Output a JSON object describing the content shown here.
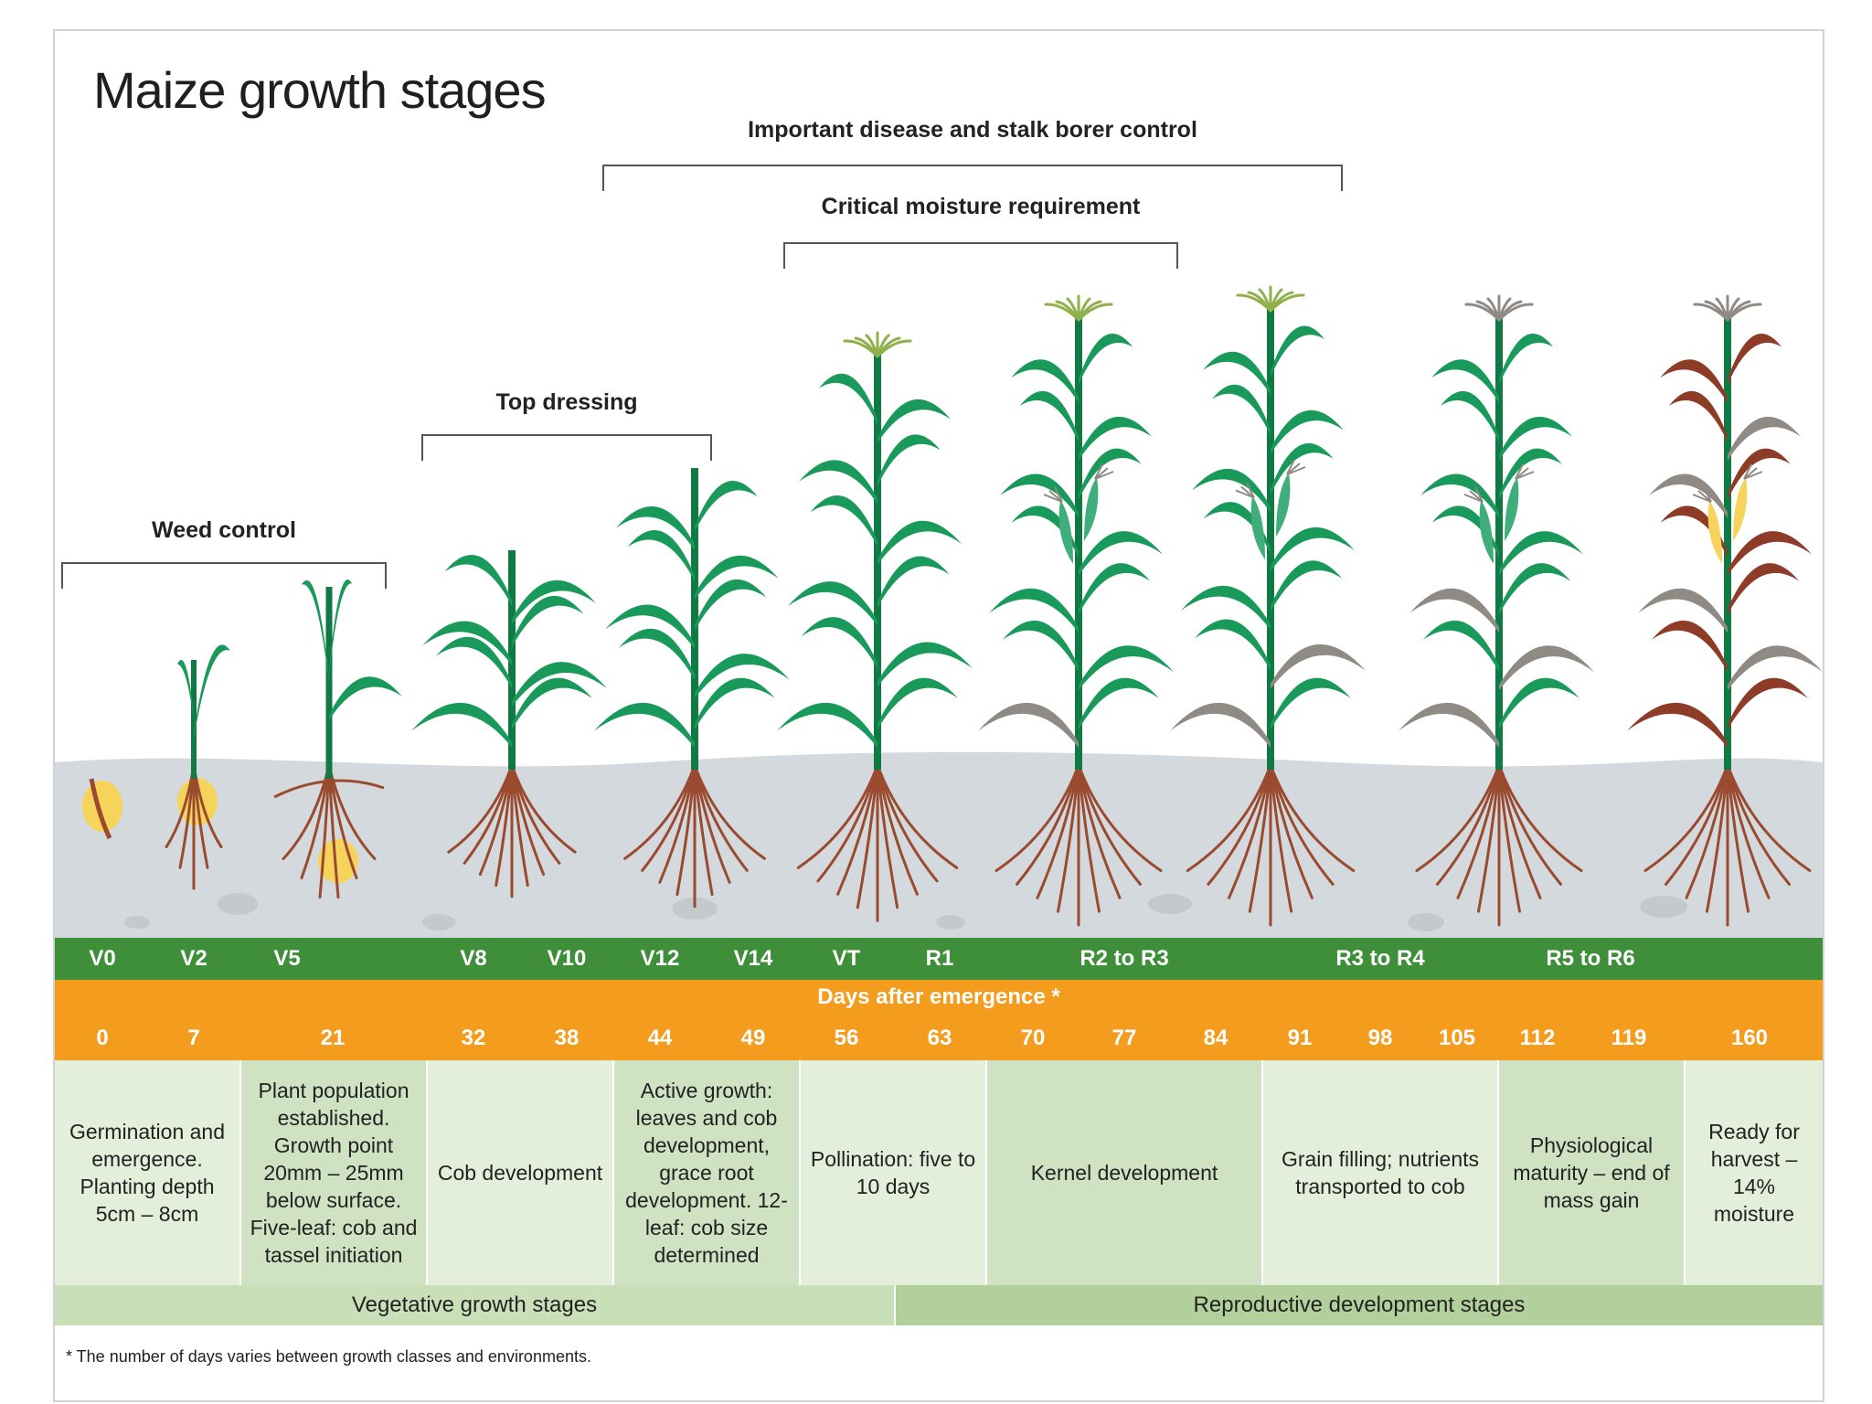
{
  "title": "Maize growth stages",
  "brackets": {
    "weed_control": "Weed control",
    "top_dressing": "Top dressing",
    "important_disease": "Important disease and stalk borer control",
    "critical_moisture": "Critical moisture requirement"
  },
  "stage_codes": [
    "V0",
    "V2",
    "V5",
    "V8",
    "V10",
    "V12",
    "V14",
    "VT",
    "R1",
    "R2 to R3",
    "R3 to R4",
    "R5 to R6"
  ],
  "days_heading": "Days after emergence *",
  "days": [
    "0",
    "7",
    "21",
    "32",
    "38",
    "44",
    "49",
    "56",
    "63",
    "70",
    "77",
    "84",
    "91",
    "98",
    "105",
    "112",
    "119",
    "160"
  ],
  "descriptions": [
    "Germination and emergence. Planting depth 5cm – 8cm",
    "Plant population established. Growth point 20mm – 25mm below surface. Five-leaf: cob and tassel initiation",
    "Cob development",
    "Active growth: leaves and cob development, grace root development. 12-leaf: cob size determined",
    "Pollination: five to 10 days",
    "Kernel development",
    "Grain filling; nutrients transported to cob",
    "Physiological maturity – end of mass gain",
    "Ready for harvest – 14% moisture"
  ],
  "phases": {
    "vegetative": "Vegetative growth stages",
    "reproductive": "Reproductive development stages"
  },
  "footnote": "* The number of days varies between growth classes and environments.",
  "colors": {
    "stage_band": "#3f8f3a",
    "days_band": "#f39c1e",
    "leaf_green": "#1a9a5a",
    "stalk_green": "#117a44",
    "root_brown": "#9a4a2e",
    "soil_grey": "#d4d9dd",
    "seed_yellow": "#f6d35a",
    "senesced_grey": "#8f8a84",
    "senesced_red": "#8e3c28",
    "desc_light": "#e3efda",
    "desc_mid": "#cfe2c2",
    "phase_veg": "#c9dfb8",
    "phase_rep": "#b2d09c"
  }
}
